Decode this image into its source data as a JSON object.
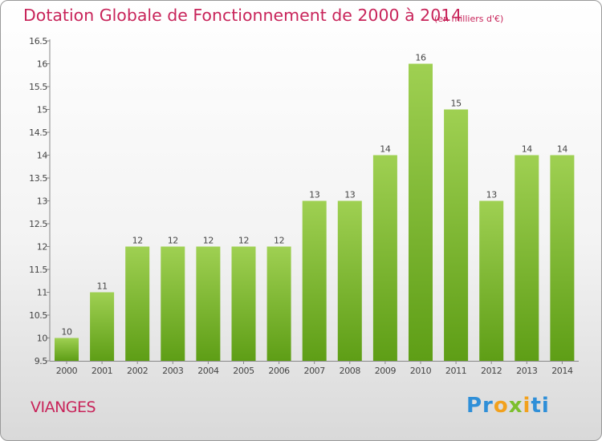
{
  "chart_data": {
    "type": "bar",
    "title": "Dotation Globale de Fonctionnement de 2000 à 2014",
    "subtitle": "(en milliers d'€)",
    "categories": [
      "2000",
      "2001",
      "2002",
      "2003",
      "2004",
      "2005",
      "2006",
      "2007",
      "2008",
      "2009",
      "2010",
      "2011",
      "2012",
      "2013",
      "2014"
    ],
    "values": [
      10,
      11,
      12,
      12,
      12,
      12,
      12,
      13,
      13,
      14,
      16,
      15,
      13,
      14,
      14
    ],
    "value_labels": [
      "10",
      "11",
      "12",
      "12",
      "12",
      "12",
      "12",
      "13",
      "13",
      "14",
      "16",
      "15",
      "13",
      "14",
      "14"
    ],
    "ylim": [
      9.5,
      16.5
    ],
    "yticks": [
      "9.5",
      "10",
      "10.5",
      "11",
      "11.5",
      "12",
      "12.5",
      "13",
      "13.5",
      "14",
      "14.5",
      "15",
      "15.5",
      "16",
      "16.5"
    ],
    "xlabel": "",
    "ylabel": "",
    "grid": false,
    "colors": {
      "bar_top": "#9fd052",
      "bar_bottom": "#5e9e16",
      "text": "#c8245a"
    }
  },
  "commune": "VIANGES",
  "brand": {
    "letters": [
      "Pr",
      "o",
      "x",
      "i",
      "ti"
    ]
  }
}
